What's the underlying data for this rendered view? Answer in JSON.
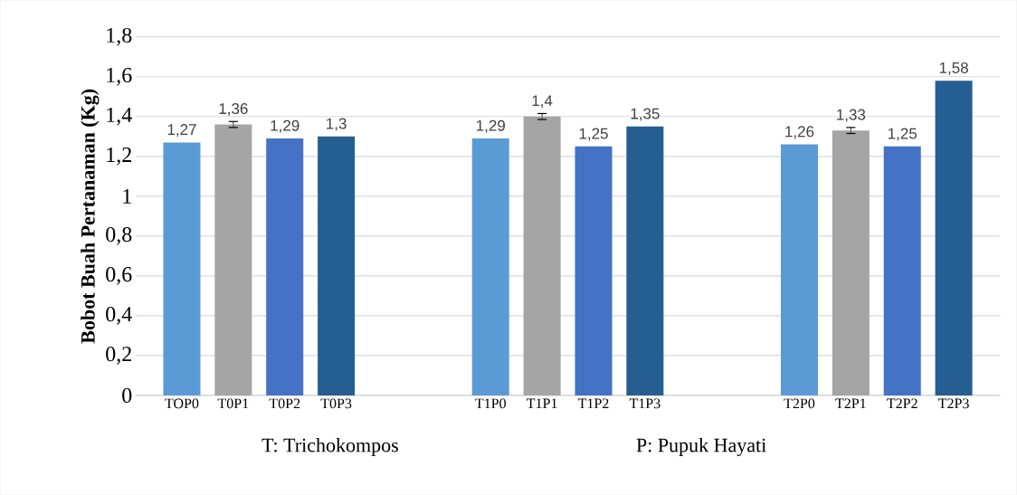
{
  "chart_data": {
    "type": "bar",
    "ylabel": "Bobot Buah Pertanaman (Kg)",
    "categories": [
      "TOP0",
      "T0P1",
      "T0P2",
      "T0P3",
      null,
      null,
      "T1P0",
      "T1P1",
      "T1P2",
      "T1P3",
      null,
      null,
      "T2P0",
      "T2P1",
      "T2P2",
      "T2P3"
    ],
    "values": [
      1.27,
      1.36,
      1.29,
      1.3,
      null,
      null,
      1.29,
      1.4,
      1.25,
      1.35,
      null,
      null,
      1.26,
      1.33,
      1.25,
      1.58
    ],
    "colors": [
      "#5b9bd5",
      "#a5a5a5",
      "#4472c4",
      "#255e91",
      null,
      null,
      "#5b9bd5",
      "#a5a5a5",
      "#4472c4",
      "#255e91",
      null,
      null,
      "#5b9bd5",
      "#a5a5a5",
      "#4472c4",
      "#255e91"
    ],
    "errors": [
      null,
      0.015,
      null,
      null,
      null,
      null,
      null,
      0.015,
      null,
      null,
      null,
      null,
      null,
      0.015,
      null,
      null
    ],
    "value_labels": [
      "1,27",
      "1,36",
      "1,29",
      "1,3",
      null,
      null,
      "1,29",
      "1,4",
      "1,25",
      "1,35",
      null,
      null,
      "1,26",
      "1,33",
      "1,25",
      "1,58"
    ],
    "ylim": [
      0,
      1.8
    ],
    "yticks": [
      0,
      {
        "value": 0.2,
        "label": "0,2"
      },
      {
        "value": 0.4,
        "label": "0,4"
      },
      {
        "value": 0.6,
        "label": "0,6"
      },
      {
        "value": 0.8,
        "label": "0,8"
      },
      1,
      {
        "value": 1.2,
        "label": "1,2"
      },
      {
        "value": 1.4,
        "label": "1,4"
      },
      {
        "value": 1.6,
        "label": "1,6"
      },
      {
        "value": 1.8,
        "label": "1,8"
      }
    ],
    "grid": "y",
    "annotations": [
      "T: Trichokompos",
      "P: Pupuk Hayati"
    ]
  }
}
